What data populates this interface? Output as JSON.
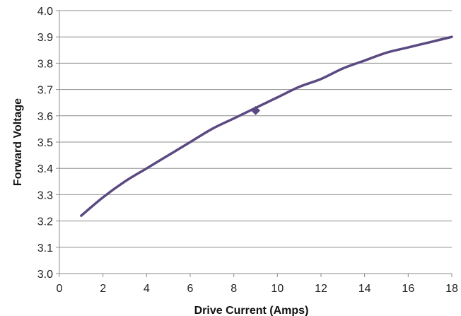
{
  "chart_data": {
    "type": "line",
    "title": "",
    "xlabel": "Drive Current (Amps)",
    "ylabel": "Forward Voltage",
    "xlim": [
      0,
      18
    ],
    "ylim": [
      3.0,
      4.0
    ],
    "xticks": [
      "0",
      "2",
      "4",
      "6",
      "8",
      "10",
      "12",
      "14",
      "16",
      "18"
    ],
    "yticks": [
      "3.0",
      "3.1",
      "3.2",
      "3.3",
      "3.4",
      "3.5",
      "3.6",
      "3.7",
      "3.8",
      "3.9",
      "4.0"
    ],
    "grid": {
      "horizontal": true,
      "vertical": false
    },
    "legend": "none",
    "series": [
      {
        "color": "#5b4a82",
        "x": [
          1,
          2,
          3,
          4,
          5,
          6,
          7,
          8,
          9,
          10,
          11,
          12,
          13,
          14,
          15,
          16,
          17,
          18
        ],
        "y": [
          3.22,
          3.29,
          3.35,
          3.4,
          3.45,
          3.5,
          3.55,
          3.59,
          3.63,
          3.67,
          3.71,
          3.74,
          3.78,
          3.81,
          3.84,
          3.86,
          3.88,
          3.9
        ]
      }
    ],
    "markers": [
      {
        "x": 9,
        "y": 3.62,
        "shape": "diamond",
        "color": "#5b4a82"
      }
    ]
  }
}
